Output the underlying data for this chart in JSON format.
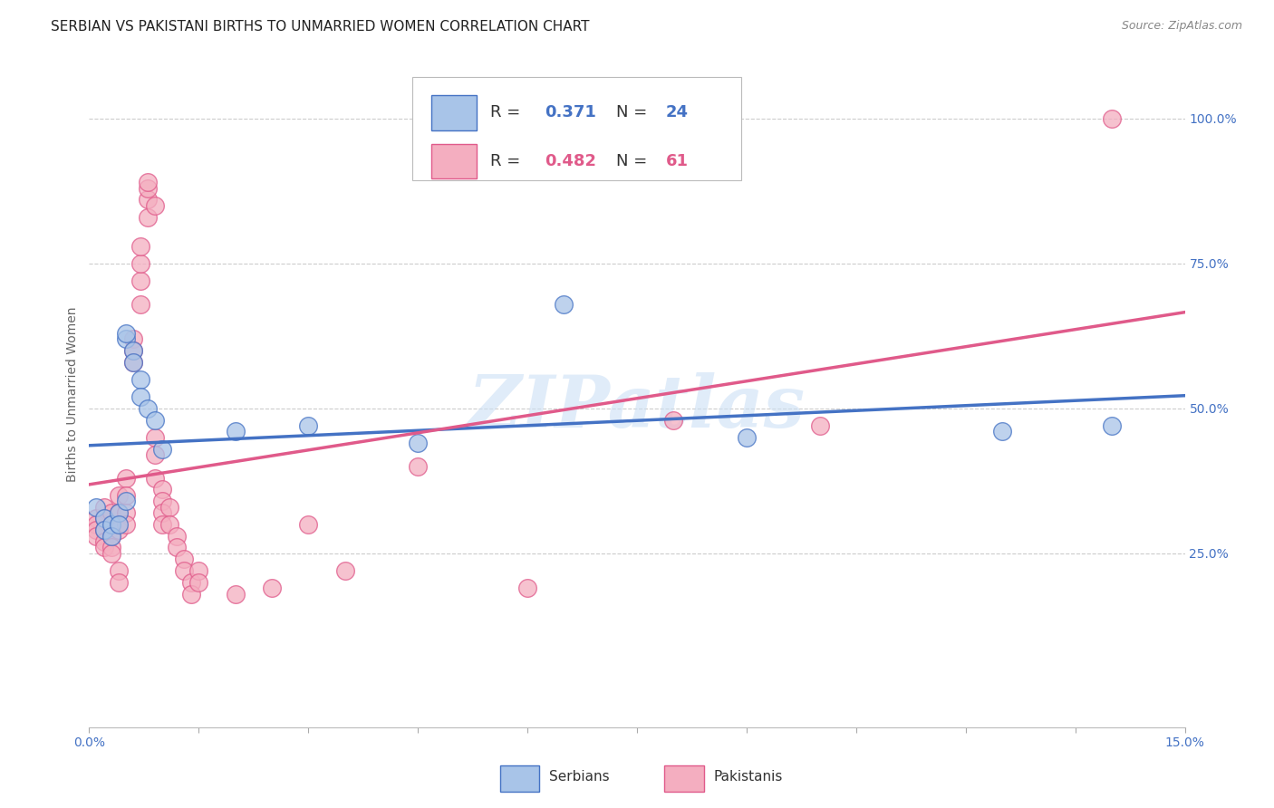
{
  "title": "SERBIAN VS PAKISTANI BIRTHS TO UNMARRIED WOMEN CORRELATION CHART",
  "source": "Source: ZipAtlas.com",
  "ylabel": "Births to Unmarried Women",
  "watermark": "ZIPatlas",
  "serbian_color": "#a8c4e8",
  "pakistani_color": "#f4aec0",
  "serbian_line_color": "#4472c4",
  "pakistani_line_color": "#e05a8a",
  "background_color": "#ffffff",
  "grid_color": "#cccccc",
  "serbian_scatter": [
    [
      0.001,
      0.33
    ],
    [
      0.002,
      0.31
    ],
    [
      0.002,
      0.29
    ],
    [
      0.003,
      0.3
    ],
    [
      0.003,
      0.28
    ],
    [
      0.004,
      0.32
    ],
    [
      0.004,
      0.3
    ],
    [
      0.005,
      0.34
    ],
    [
      0.005,
      0.62
    ],
    [
      0.005,
      0.63
    ],
    [
      0.006,
      0.6
    ],
    [
      0.006,
      0.58
    ],
    [
      0.007,
      0.55
    ],
    [
      0.007,
      0.52
    ],
    [
      0.008,
      0.5
    ],
    [
      0.009,
      0.48
    ],
    [
      0.01,
      0.43
    ],
    [
      0.02,
      0.46
    ],
    [
      0.03,
      0.47
    ],
    [
      0.045,
      0.44
    ],
    [
      0.065,
      0.68
    ],
    [
      0.09,
      0.45
    ],
    [
      0.125,
      0.46
    ],
    [
      0.14,
      0.47
    ]
  ],
  "pakistani_scatter": [
    [
      0.001,
      0.31
    ],
    [
      0.001,
      0.3
    ],
    [
      0.001,
      0.29
    ],
    [
      0.001,
      0.28
    ],
    [
      0.002,
      0.33
    ],
    [
      0.002,
      0.31
    ],
    [
      0.002,
      0.29
    ],
    [
      0.002,
      0.27
    ],
    [
      0.002,
      0.26
    ],
    [
      0.003,
      0.32
    ],
    [
      0.003,
      0.3
    ],
    [
      0.003,
      0.28
    ],
    [
      0.003,
      0.26
    ],
    [
      0.003,
      0.25
    ],
    [
      0.004,
      0.35
    ],
    [
      0.004,
      0.32
    ],
    [
      0.004,
      0.29
    ],
    [
      0.004,
      0.22
    ],
    [
      0.004,
      0.2
    ],
    [
      0.005,
      0.38
    ],
    [
      0.005,
      0.35
    ],
    [
      0.005,
      0.32
    ],
    [
      0.005,
      0.3
    ],
    [
      0.006,
      0.62
    ],
    [
      0.006,
      0.6
    ],
    [
      0.006,
      0.58
    ],
    [
      0.007,
      0.68
    ],
    [
      0.007,
      0.72
    ],
    [
      0.007,
      0.75
    ],
    [
      0.007,
      0.78
    ],
    [
      0.008,
      0.83
    ],
    [
      0.008,
      0.86
    ],
    [
      0.008,
      0.88
    ],
    [
      0.008,
      0.89
    ],
    [
      0.009,
      0.85
    ],
    [
      0.009,
      0.45
    ],
    [
      0.009,
      0.42
    ],
    [
      0.009,
      0.38
    ],
    [
      0.01,
      0.36
    ],
    [
      0.01,
      0.34
    ],
    [
      0.01,
      0.32
    ],
    [
      0.01,
      0.3
    ],
    [
      0.011,
      0.33
    ],
    [
      0.011,
      0.3
    ],
    [
      0.012,
      0.28
    ],
    [
      0.012,
      0.26
    ],
    [
      0.013,
      0.24
    ],
    [
      0.013,
      0.22
    ],
    [
      0.014,
      0.2
    ],
    [
      0.014,
      0.18
    ],
    [
      0.015,
      0.22
    ],
    [
      0.015,
      0.2
    ],
    [
      0.02,
      0.18
    ],
    [
      0.025,
      0.19
    ],
    [
      0.03,
      0.3
    ],
    [
      0.035,
      0.22
    ],
    [
      0.045,
      0.4
    ],
    [
      0.06,
      0.19
    ],
    [
      0.08,
      0.48
    ],
    [
      0.1,
      0.47
    ],
    [
      0.14,
      1.0
    ]
  ],
  "xlim": [
    0.0,
    0.15
  ],
  "ylim": [
    -0.05,
    1.1
  ],
  "xtick_positions": [
    0.0,
    0.015,
    0.03,
    0.045,
    0.06,
    0.075,
    0.09,
    0.105,
    0.12,
    0.135,
    0.15
  ],
  "yticks_right": [
    0.25,
    0.5,
    0.75,
    1.0
  ],
  "ytick_labels_right": [
    "25.0%",
    "50.0%",
    "75.0%",
    "100.0%"
  ],
  "title_fontsize": 11,
  "source_fontsize": 9
}
